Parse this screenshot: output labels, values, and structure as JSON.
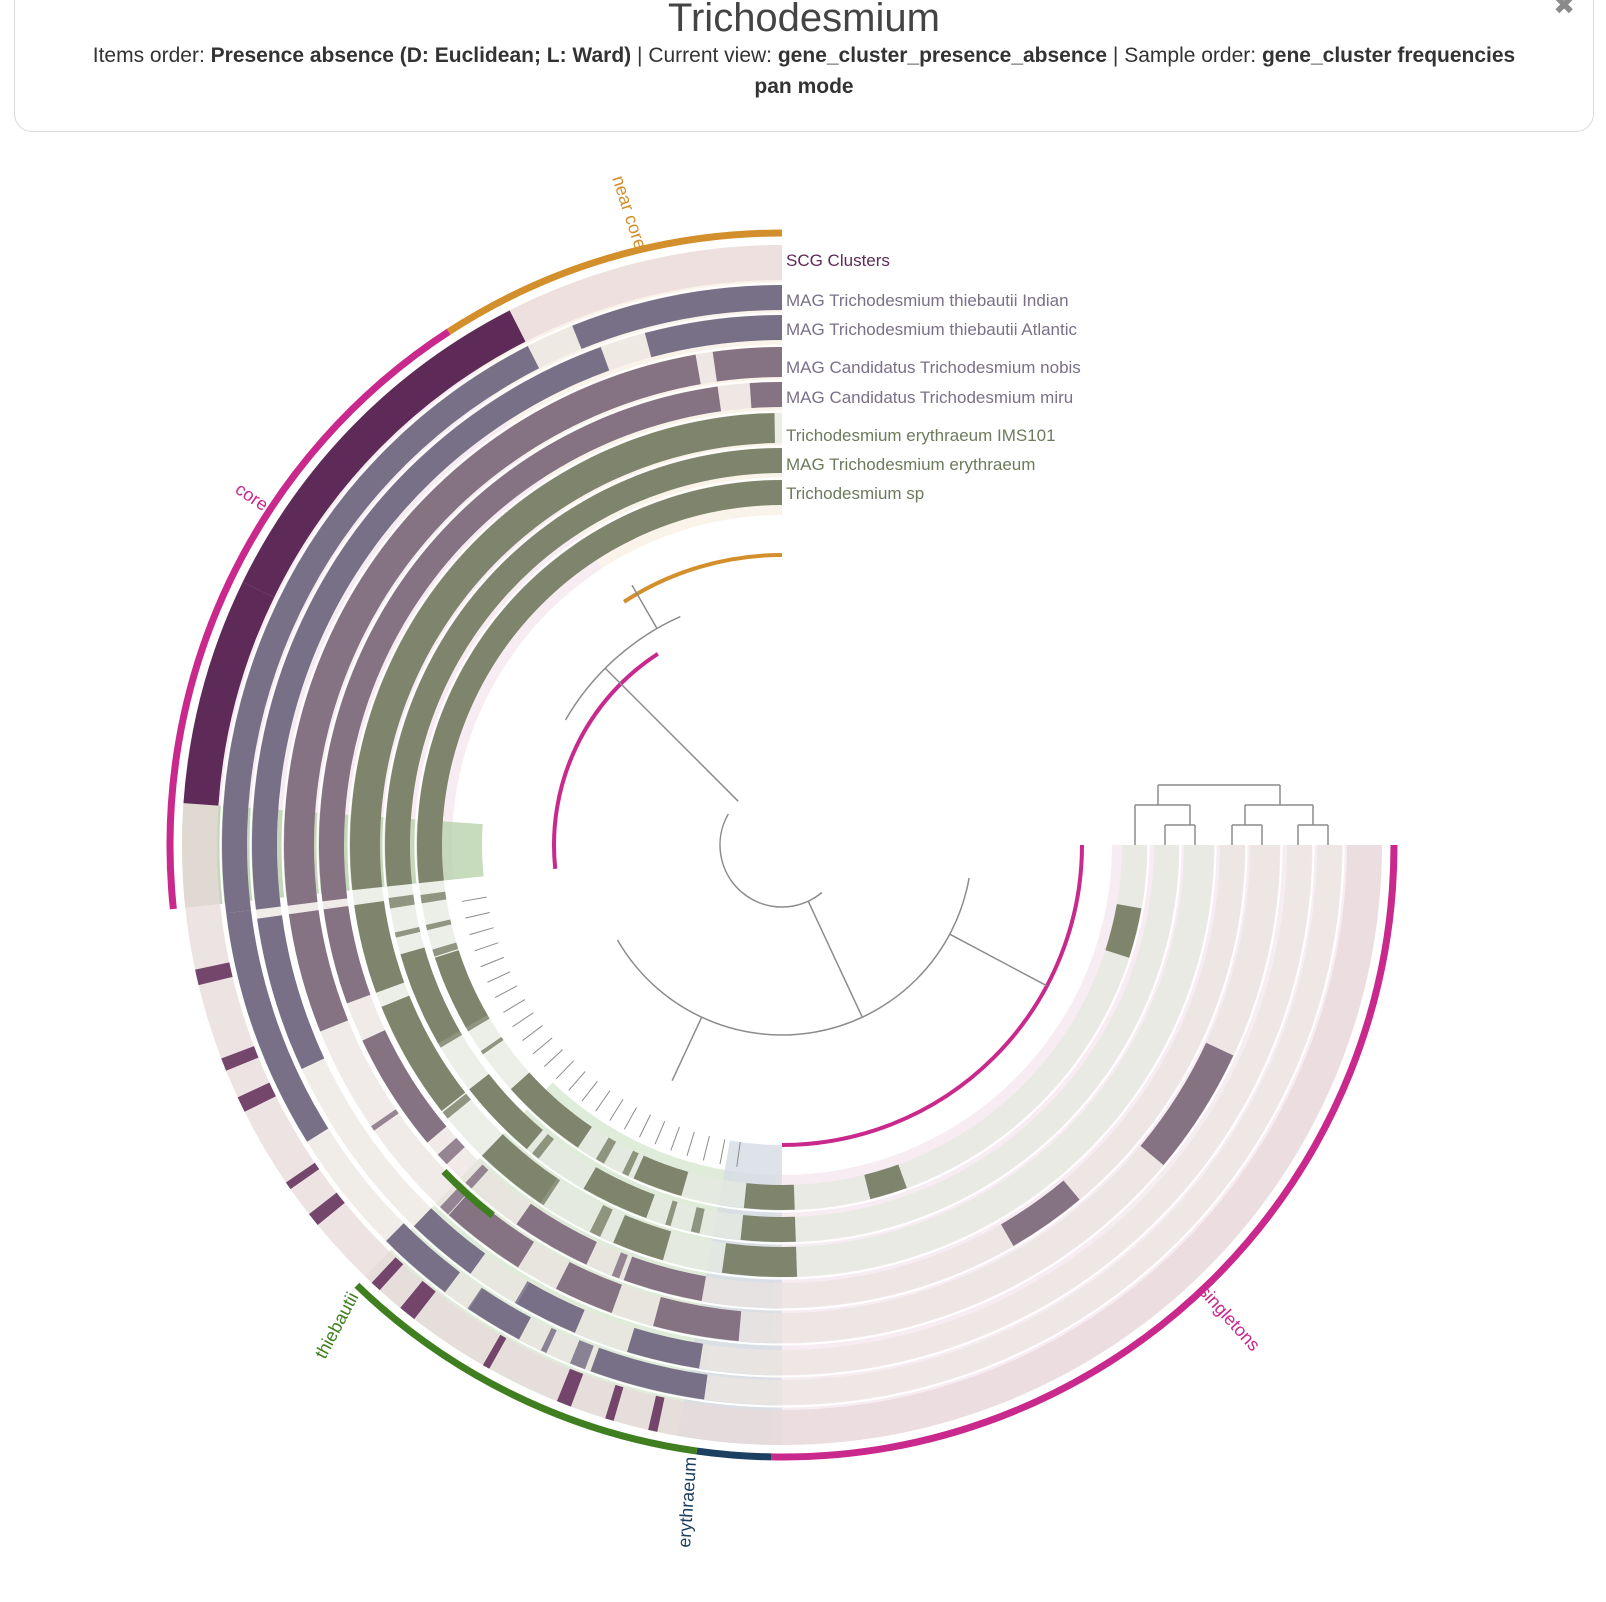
{
  "header": {
    "title": "Trichodesmium",
    "items_order_label": "Items order:",
    "items_order_value": "Presence absence (D: Euclidean; L: Ward)",
    "current_view_label": "Current view:",
    "current_view_value": "gene_cluster_presence_absence",
    "sample_order_label": "Sample order:",
    "sample_order_value": "gene_cluster frequencies",
    "mode_value": "pan mode",
    "separator": "|",
    "close_icon": "close-icon"
  },
  "layers": [
    {
      "name": "SCG Clusters",
      "color": "#5e2a57",
      "bg": "#e8dada"
    },
    {
      "name": "MAG Trichodesmium thiebautii Indian",
      "color": "#7d7289",
      "bg": "#ebe6e0"
    },
    {
      "name": "MAG Trichodesmium thiebautii Atlantic",
      "color": "#7d7289",
      "bg": "#ebe6e0"
    },
    {
      "name": "MAG Candidatus Trichodesmium nobis",
      "color": "#8a7485",
      "bg": "#ebe3e0"
    },
    {
      "name": "MAG Candidatus Trichodesmium miru",
      "color": "#8a7485",
      "bg": "#ebe3e0"
    },
    {
      "name": "Trichodesmium erythraeum IMS101",
      "color": "#7d8b6a",
      "bg": "#e6e9e0"
    },
    {
      "name": "MAG Trichodesmium erythraeum",
      "color": "#7d8b6a",
      "bg": "#e6e9e0"
    },
    {
      "name": "Trichodesmium sp",
      "color": "#7d8b6a",
      "bg": "#e6e9e0"
    }
  ],
  "bins": [
    {
      "name": "near core",
      "color": "#d38f2b",
      "shade": "#f6e6d6"
    },
    {
      "name": "core",
      "color": "#c9288c",
      "shade": "#efd8e8"
    },
    {
      "name": "thiebautii",
      "color": "#3f7f1f",
      "shade": "#c6dcbc"
    },
    {
      "name": "erythraeum",
      "color": "#1d3f60",
      "shade": "#d6dce4"
    },
    {
      "name": "singletons",
      "color": "#c9288c",
      "shade": "#f3dcea"
    }
  ],
  "colors": {
    "tree": "#8c8c8c",
    "scg_dark": "#5e2a57",
    "label_purple": "#5e2a57"
  }
}
